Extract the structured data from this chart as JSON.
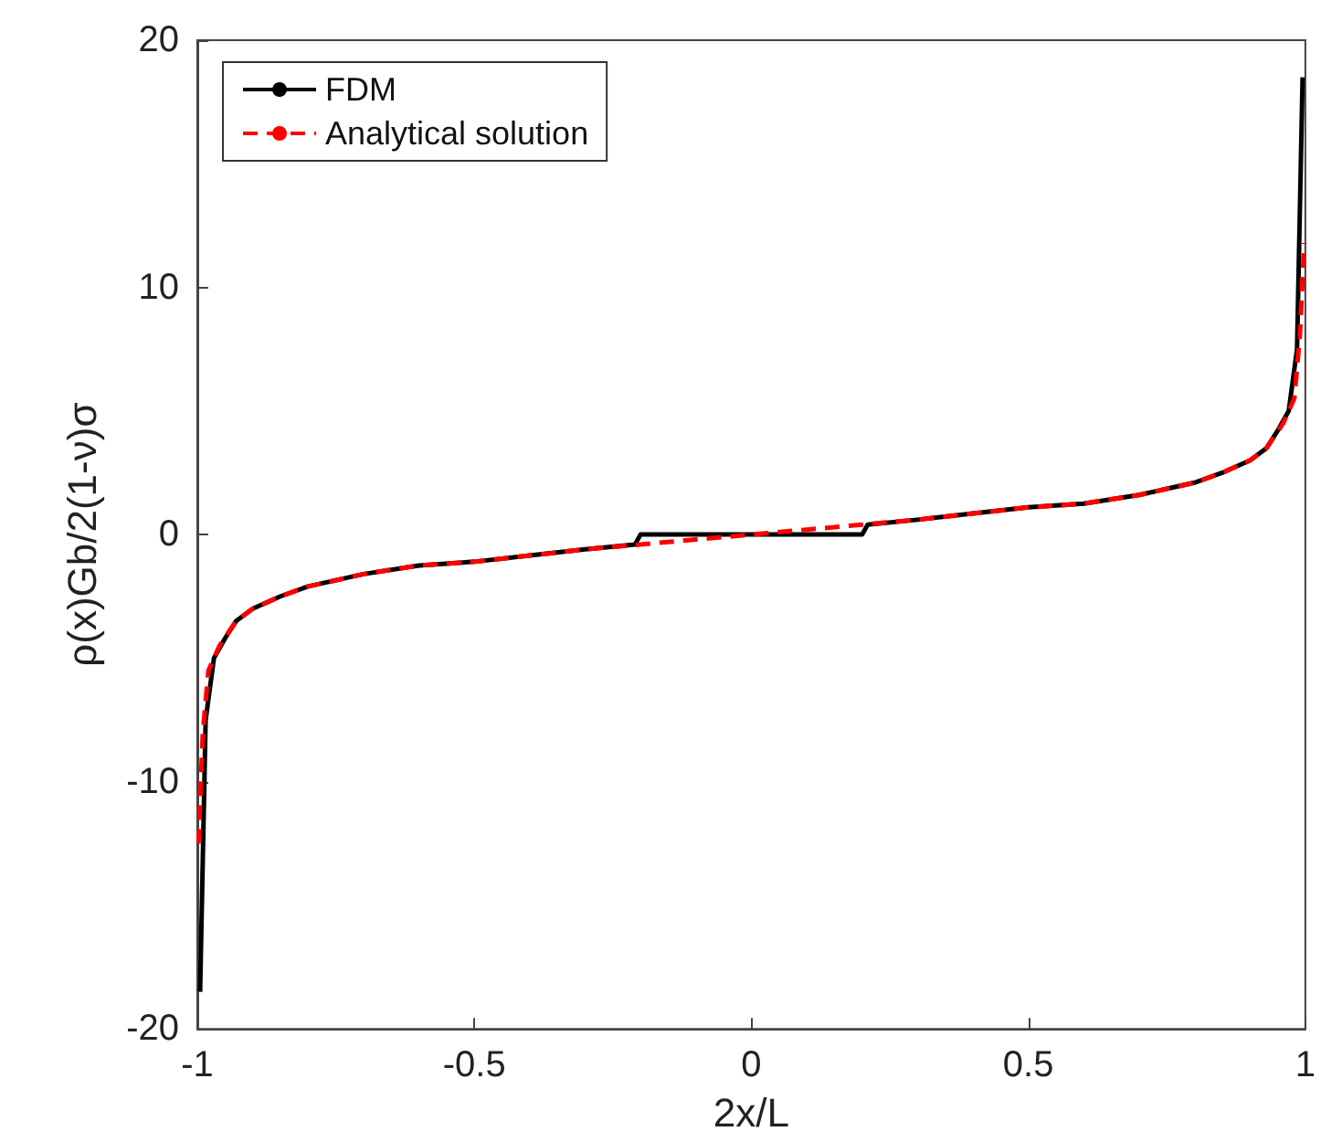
{
  "chart_data": {
    "type": "line",
    "xlabel": "2x/L",
    "ylabel": "ρ(x)Gb/2(1-ν)σ",
    "xlim": [
      -1,
      1
    ],
    "xticks": [
      -1,
      -0.5,
      0,
      0.5,
      1
    ],
    "ylim": [
      -20,
      20
    ],
    "yticks": [
      -20,
      -10,
      0,
      10,
      20
    ],
    "grid": false,
    "legend": "top left",
    "marker": "none",
    "series": [
      {
        "name": "FDM",
        "color": "#000000",
        "line_style": "solid",
        "x": [
          -0.995,
          -0.985,
          -0.97,
          -0.95,
          -0.93,
          -0.9,
          -0.85,
          -0.8,
          -0.7,
          -0.6,
          -0.5,
          -0.4,
          -0.3,
          -0.21,
          -0.2,
          0,
          0.2,
          0.21,
          0.3,
          0.4,
          0.5,
          0.6,
          0.7,
          0.8,
          0.85,
          0.9,
          0.93,
          0.95,
          0.97,
          0.985,
          0.995
        ],
        "values": [
          -18.5,
          -7.5,
          -5,
          -4.2,
          -3.5,
          -3,
          -2.5,
          -2.1,
          -1.6,
          -1.25,
          -1.1,
          -0.85,
          -0.6,
          -0.4,
          0,
          0,
          0,
          0.4,
          0.6,
          0.85,
          1.1,
          1.25,
          1.6,
          2.1,
          2.5,
          3,
          3.5,
          4.2,
          5,
          7.5,
          18.5
        ]
      },
      {
        "name": "Analytical solution",
        "color": "#ff0000",
        "line_style": "dashed",
        "x": [
          -0.998,
          -0.99,
          -0.98,
          -0.96,
          -0.93,
          -0.9,
          -0.85,
          -0.8,
          -0.7,
          -0.6,
          -0.5,
          -0.4,
          -0.3,
          -0.2,
          -0.1,
          0,
          0.1,
          0.2,
          0.3,
          0.4,
          0.5,
          0.6,
          0.7,
          0.8,
          0.85,
          0.9,
          0.93,
          0.96,
          0.98,
          0.99,
          0.998
        ],
        "values": [
          -12.5,
          -8,
          -5.5,
          -4.5,
          -3.5,
          -3,
          -2.5,
          -2.1,
          -1.6,
          -1.25,
          -1.1,
          -0.85,
          -0.6,
          -0.4,
          -0.2,
          0,
          0.2,
          0.4,
          0.6,
          0.85,
          1.1,
          1.25,
          1.6,
          2.1,
          2.5,
          3,
          3.5,
          4.5,
          5.5,
          8,
          11.8
        ]
      }
    ]
  }
}
